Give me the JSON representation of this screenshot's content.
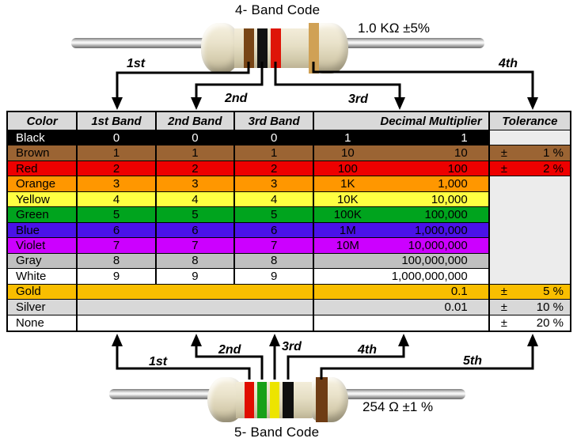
{
  "top_resistor": {
    "title": "4- Band Code",
    "value": "1.0 KΩ ±5%",
    "band_names": [
      "brown",
      "black",
      "red",
      "gold"
    ],
    "band_colors": [
      "#784516",
      "#121212",
      "#DE1508",
      "#D0A155"
    ],
    "arrow_labels": [
      "1st",
      "2nd",
      "3rd",
      "4th"
    ]
  },
  "bottom_resistor": {
    "title": "5- Band Code",
    "value": "254 Ω ±1 %",
    "band_names": [
      "red",
      "green",
      "yellow",
      "black",
      "brown"
    ],
    "band_colors": [
      "#E00D00",
      "#18A018",
      "#EDE400",
      "#0F0F0F",
      "#6E3C14"
    ],
    "arrow_labels": [
      "1st",
      "2nd",
      "3rd",
      "4th",
      "5th"
    ]
  },
  "table": {
    "headers": [
      "Color",
      "1st Band",
      "2nd Band",
      "3rd Band",
      "Decimal Multiplier",
      "Tolerance"
    ],
    "header_bg": "#D9D9D9",
    "merged_tolerance_bg": "#ECECEC",
    "rows": [
      {
        "color": "Black",
        "bg": "#000000",
        "fg": "#FFFFFF",
        "bands": [
          "0",
          "0",
          "0"
        ],
        "bands_merged": false,
        "mult_prefix": "1",
        "mult_value": "1",
        "tolerance": null,
        "tol_bg": "#ECECEC",
        "tol_merge_below": false
      },
      {
        "color": "Brown",
        "bg": "#9B6433",
        "fg": "#000000",
        "bands": [
          "1",
          "1",
          "1"
        ],
        "bands_merged": false,
        "mult_prefix": "10",
        "mult_value": "10",
        "tolerance": {
          "sign": "±",
          "value": "1 %"
        },
        "tol_bg": null,
        "tol_merge_below": false
      },
      {
        "color": "Red",
        "bg": "#EE0000",
        "fg": "#000000",
        "bands": [
          "2",
          "2",
          "2"
        ],
        "bands_merged": false,
        "mult_prefix": "100",
        "mult_value": "100",
        "tolerance": {
          "sign": "±",
          "value": "2 %"
        },
        "tol_bg": null,
        "tol_merge_below": false
      },
      {
        "color": "Orange",
        "bg": "#FF9700",
        "fg": "#000000",
        "bands": [
          "3",
          "3",
          "3"
        ],
        "bands_merged": false,
        "mult_prefix": "1K",
        "mult_value": "1,000",
        "tolerance": null,
        "tol_bg": "#ECECEC",
        "tol_merge_below": true
      },
      {
        "color": "Yellow",
        "bg": "#FFFF42",
        "fg": "#000000",
        "bands": [
          "4",
          "4",
          "4"
        ],
        "bands_merged": false,
        "mult_prefix": "10K",
        "mult_value": "10,000",
        "tolerance": null,
        "tol_bg": "#ECECEC",
        "tol_merge_below": true
      },
      {
        "color": "Green",
        "bg": "#00A41E",
        "fg": "#000000",
        "bands": [
          "5",
          "5",
          "5"
        ],
        "bands_merged": false,
        "mult_prefix": "100K",
        "mult_value": "100,000",
        "tolerance": null,
        "tol_bg": "#ECECEC",
        "tol_merge_below": true
      },
      {
        "color": "Blue",
        "bg": "#4A12E8",
        "fg": "#000000",
        "bands": [
          "6",
          "6",
          "6"
        ],
        "bands_merged": false,
        "mult_prefix": "1M",
        "mult_value": "1,000,000",
        "tolerance": null,
        "tol_bg": "#ECECEC",
        "tol_merge_below": true
      },
      {
        "color": "Violet",
        "bg": "#CC00FF",
        "fg": "#000000",
        "bands": [
          "7",
          "7",
          "7"
        ],
        "bands_merged": false,
        "mult_prefix": "10M",
        "mult_value": "10,000,000",
        "tolerance": null,
        "tol_bg": "#ECECEC",
        "tol_merge_below": true
      },
      {
        "color": "Gray",
        "bg": "#C0C0C0",
        "fg": "#000000",
        "bands": [
          "8",
          "8",
          "8"
        ],
        "bands_merged": false,
        "mult_prefix": "",
        "mult_value": "100,000,000",
        "tolerance": null,
        "tol_bg": "#ECECEC",
        "tol_merge_below": true
      },
      {
        "color": "White",
        "bg": "#FFFFFF",
        "fg": "#000000",
        "bands": [
          "9",
          "9",
          "9"
        ],
        "bands_merged": false,
        "mult_prefix": "",
        "mult_value": "1,000,000,000",
        "tolerance": null,
        "tol_bg": "#ECECEC",
        "tol_merge_below": false
      },
      {
        "color": "Gold",
        "bg": "#F9BE00",
        "fg": "#000000",
        "bands": [],
        "bands_merged": true,
        "mult_prefix": "",
        "mult_value": "0.1",
        "tolerance": {
          "sign": "±",
          "value": "5 %"
        },
        "tol_bg": null,
        "tol_merge_below": false
      },
      {
        "color": "Silver",
        "bg": "#D8D8D8",
        "fg": "#000000",
        "bands": [],
        "bands_merged": true,
        "mult_prefix": "",
        "mult_value": "0.01",
        "tolerance": {
          "sign": "±",
          "value": "10 %"
        },
        "tol_bg": null,
        "tol_merge_below": false
      },
      {
        "color": "None",
        "bg": "#FFFFFF",
        "fg": "#000000",
        "bands": [],
        "bands_merged": true,
        "mult_prefix": "",
        "mult_value": "",
        "tolerance": {
          "sign": "±",
          "value": "20 %"
        },
        "tol_bg": null,
        "tol_merge_below": false
      }
    ]
  }
}
